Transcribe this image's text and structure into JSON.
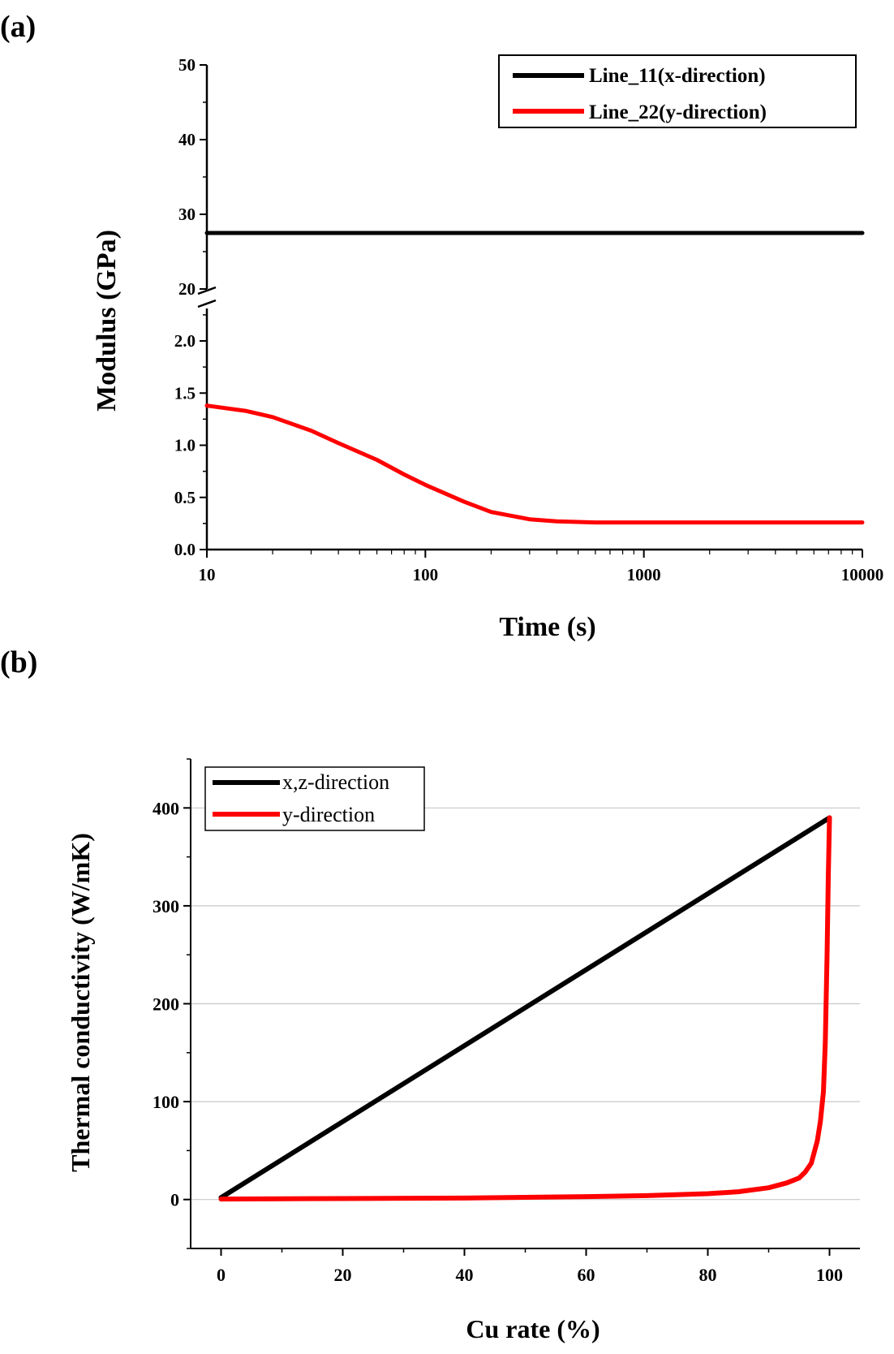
{
  "chart_data": [
    {
      "panel_label": "(a)",
      "type": "line",
      "xlabel": "Time (s)",
      "ylabel": "Modulus (GPa)",
      "x_scale": "log",
      "xlim": [
        10,
        10000
      ],
      "x_ticks": [
        "10",
        "100",
        "1000",
        "10000"
      ],
      "y_axis_break": {
        "lower_range": [
          0.0,
          2.2
        ],
        "upper_range": [
          20,
          50
        ]
      },
      "y_ticks_lower": [
        "0.0",
        "0.5",
        "1.0",
        "1.5",
        "2.0"
      ],
      "y_ticks_upper": [
        "20",
        "30",
        "40",
        "50"
      ],
      "grid": false,
      "legend_position": "top-right",
      "series": [
        {
          "name": "Line_11(x-direction)",
          "color": "#000000",
          "x": [
            10,
            100,
            1000,
            10000
          ],
          "y": [
            27.5,
            27.5,
            27.5,
            27.5
          ]
        },
        {
          "name": "Line_22(y-direction)",
          "color": "#ff0000",
          "x": [
            10,
            15,
            20,
            30,
            40,
            60,
            80,
            100,
            150,
            200,
            300,
            400,
            600,
            1000,
            3000,
            10000
          ],
          "y": [
            1.38,
            1.33,
            1.27,
            1.14,
            1.02,
            0.86,
            0.72,
            0.62,
            0.46,
            0.36,
            0.29,
            0.27,
            0.26,
            0.26,
            0.26,
            0.26
          ]
        }
      ]
    },
    {
      "panel_label": "(b)",
      "type": "line",
      "xlabel": "Cu rate (%)",
      "ylabel": "Thermal conductivity (W/mK)",
      "xlim": [
        -5,
        105
      ],
      "ylim": [
        -50,
        450
      ],
      "x_ticks": [
        "0",
        "20",
        "40",
        "60",
        "80",
        "100"
      ],
      "y_ticks": [
        "0",
        "100",
        "200",
        "300",
        "400"
      ],
      "grid": true,
      "legend_position": "top-left",
      "series": [
        {
          "name": "x,z-direction",
          "color": "#000000",
          "x": [
            0,
            100
          ],
          "y": [
            2,
            390
          ]
        },
        {
          "name": "y-direction",
          "color": "#ff0000",
          "x": [
            0,
            20,
            40,
            60,
            70,
            80,
            85,
            90,
            93,
            95,
            96,
            97,
            98,
            98.5,
            99,
            99.3,
            99.6,
            99.8,
            100
          ],
          "y": [
            0.5,
            1,
            1.5,
            3,
            4,
            6,
            8,
            12,
            17,
            22,
            28,
            37,
            60,
            80,
            110,
            160,
            250,
            330,
            390
          ]
        }
      ]
    }
  ]
}
